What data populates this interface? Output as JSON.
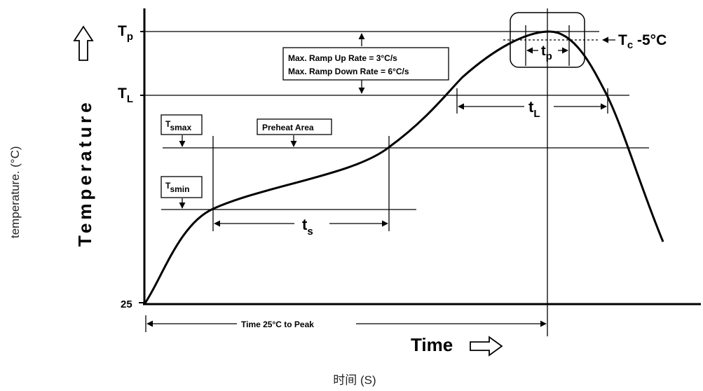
{
  "outer_labels": {
    "y_axis_caption": "temperature. (°C)",
    "x_axis_caption": "时间 (S)"
  },
  "diagram": {
    "y_axis_title": "Temperature",
    "x_axis_title": "Time",
    "origin_label": "25",
    "levels": {
      "tp": {
        "main": "T",
        "sub": "p"
      },
      "tl": {
        "main": "T",
        "sub": "L"
      },
      "tc": {
        "main": "T",
        "sub": "c",
        "suffix": " -5°C"
      }
    },
    "notes": {
      "ramp_up": "Max. Ramp Up Rate = 3°C/s",
      "ramp_down": "Max. Ramp Down Rate = 6°C/s",
      "preheat": "Preheat Area",
      "tsmax": {
        "main": "T",
        "sub": "smax"
      },
      "tsmin": {
        "main": "T",
        "sub": "smin"
      }
    },
    "intervals": {
      "ts": {
        "main": "t",
        "sub": "s"
      },
      "tl": {
        "main": "t",
        "sub": "L"
      },
      "tp": {
        "main": "t",
        "sub": "p"
      },
      "time_to_peak": "Time 25°C to Peak"
    }
  }
}
